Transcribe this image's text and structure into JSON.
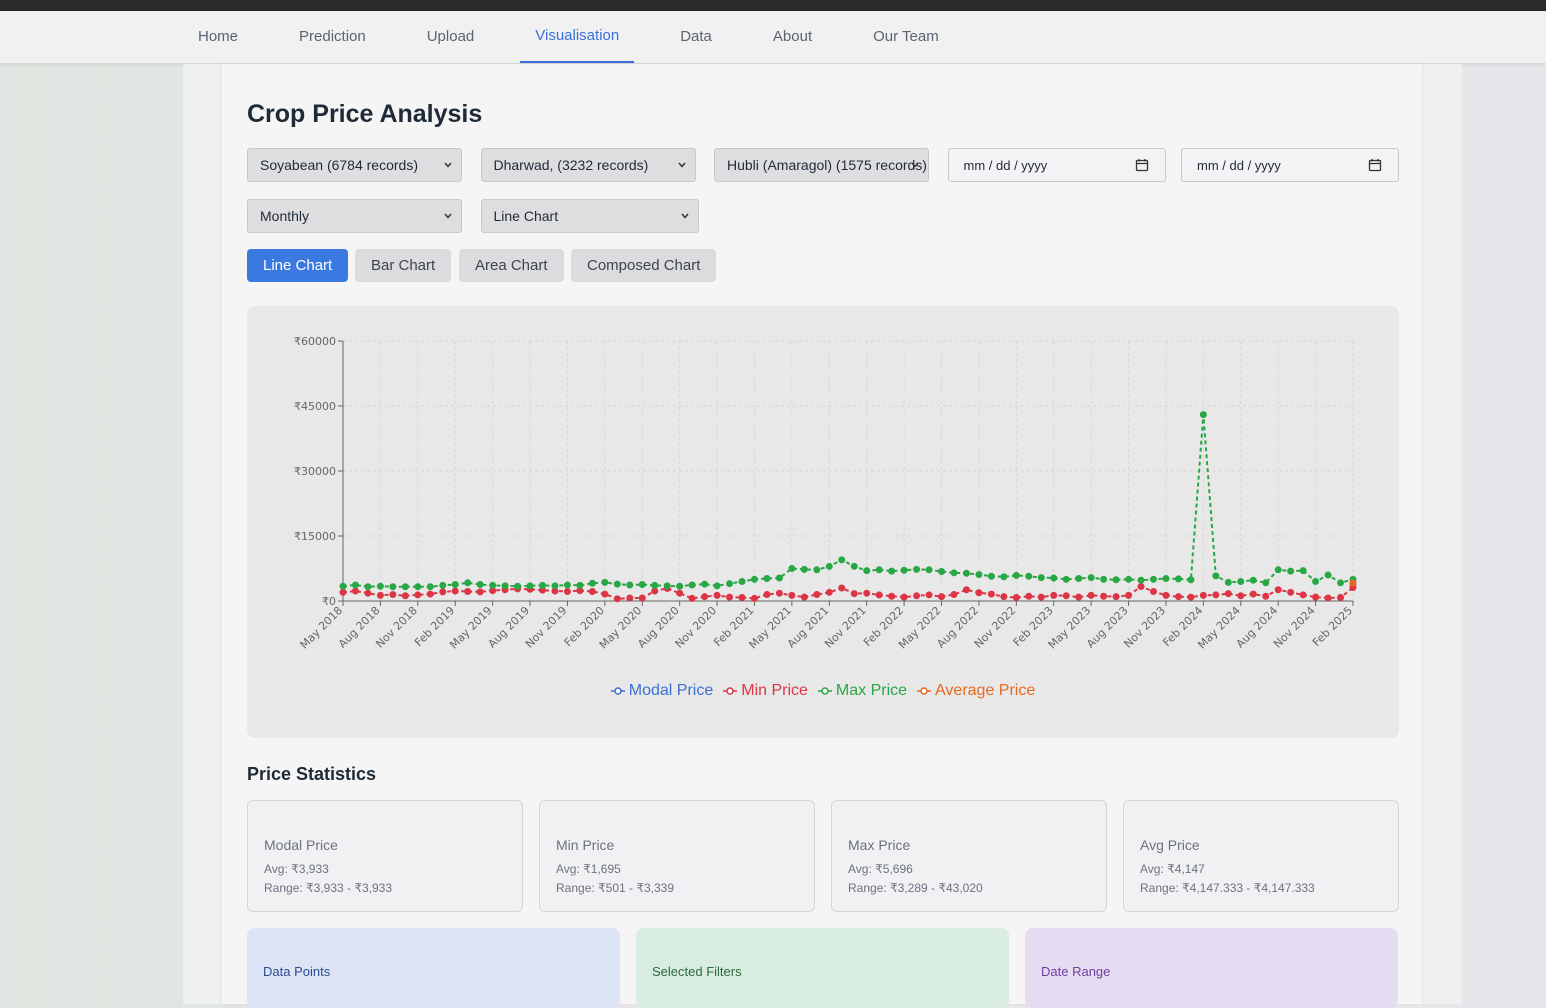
{
  "nav": {
    "items": [
      "Home",
      "Prediction",
      "Upload",
      "Visualisation",
      "Data",
      "About",
      "Our Team"
    ],
    "active": 3
  },
  "page": {
    "title": "Crop Price Analysis"
  },
  "filters": {
    "selects": [
      "Soyabean (6784 records)",
      "Dharwad, (3232 records)",
      "Hubli (Amaragol) (1575 records)"
    ],
    "date_inputs": [
      "mm / dd / yyyy",
      "mm / dd / yyyy"
    ],
    "aggregation": "Monthly",
    "chart_select": "Line Chart"
  },
  "chart_buttons": {
    "items": [
      "Line Chart",
      "Bar Chart",
      "Area Chart",
      "Composed Chart"
    ],
    "active": 0
  },
  "chart_data": {
    "type": "line",
    "categories": [
      "May 2018",
      null,
      null,
      "Aug 2018",
      null,
      null,
      "Nov 2018",
      null,
      null,
      "Feb 2019",
      null,
      null,
      "May 2019",
      null,
      null,
      "Aug 2019",
      null,
      null,
      "Nov 2019",
      null,
      null,
      "Feb 2020",
      null,
      null,
      "May 2020",
      null,
      null,
      "Aug 2020",
      null,
      null,
      "Nov 2020",
      null,
      null,
      "Feb 2021",
      null,
      null,
      "May 2021",
      null,
      null,
      "Aug 2021",
      null,
      null,
      "Nov 2021",
      null,
      null,
      "Feb 2022",
      null,
      null,
      "May 2022",
      null,
      null,
      "Aug 2022",
      null,
      null,
      "Nov 2022",
      null,
      null,
      "Feb 2023",
      null,
      null,
      "May 2023",
      null,
      null,
      "Aug 2023",
      null,
      null,
      "Nov 2023",
      null,
      null,
      "Feb 2024",
      null,
      null,
      "May 2024",
      null,
      null,
      "Aug 2024",
      null,
      null,
      "Nov 2024",
      null,
      null,
      "Feb 2025"
    ],
    "series": [
      {
        "name": "Modal Price",
        "color": "#3b6fd6",
        "values": [
          null,
          null,
          null,
          null,
          null,
          null,
          null,
          null,
          null,
          null,
          null,
          null,
          null,
          null,
          null,
          null,
          null,
          null,
          null,
          null,
          null,
          null,
          null,
          null,
          null,
          null,
          null,
          null,
          null,
          null,
          null,
          null,
          null,
          null,
          null,
          null,
          null,
          null,
          null,
          null,
          null,
          null,
          null,
          null,
          null,
          null,
          null,
          null,
          null,
          null,
          null,
          null,
          null,
          null,
          null,
          null,
          null,
          null,
          null,
          null,
          null,
          null,
          null,
          null,
          null,
          null,
          null,
          null,
          null,
          null,
          null,
          null,
          null,
          null,
          null,
          null,
          null,
          null,
          null,
          null,
          null,
          3933
        ]
      },
      {
        "name": "Min Price",
        "color": "#dc3545",
        "values": [
          2000,
          2300,
          1800,
          1300,
          1500,
          1200,
          1400,
          1600,
          2100,
          2300,
          2200,
          2100,
          2400,
          2600,
          2800,
          2700,
          2500,
          2300,
          2200,
          2400,
          2200,
          1600,
          501,
          700,
          700,
          2300,
          2900,
          1800,
          600,
          1000,
          1300,
          900,
          800,
          600,
          1500,
          1800,
          1300,
          900,
          1500,
          2000,
          3000,
          1700,
          1800,
          1400,
          1100,
          900,
          1200,
          1400,
          1000,
          1500,
          2600,
          1900,
          1600,
          1000,
          800,
          1100,
          900,
          1300,
          1200,
          900,
          1300,
          1100,
          1000,
          1300,
          3339,
          2200,
          1300,
          1000,
          900,
          1300,
          1400,
          1700,
          1200,
          1600,
          1100,
          2600,
          2000,
          1400,
          900,
          700,
          800,
          3100
        ]
      },
      {
        "name": "Max Price",
        "color": "#28a745",
        "values": [
          3400,
          3700,
          3300,
          3400,
          3300,
          3289,
          3300,
          3300,
          3600,
          3800,
          4200,
          3800,
          3600,
          3500,
          3400,
          3500,
          3600,
          3500,
          3700,
          3600,
          4100,
          4300,
          3900,
          3700,
          3800,
          3600,
          3500,
          3400,
          3700,
          3900,
          3500,
          4000,
          4500,
          5000,
          5200,
          5300,
          7500,
          7300,
          7200,
          8000,
          9500,
          8000,
          7000,
          7200,
          6900,
          7100,
          7300,
          7200,
          6800,
          6500,
          6400,
          6100,
          5700,
          5600,
          5900,
          5700,
          5400,
          5300,
          5000,
          5200,
          5400,
          5000,
          4900,
          5000,
          4800,
          5000,
          5200,
          5100,
          4900,
          43020,
          5800,
          4300,
          4500,
          4800,
          4200,
          7200,
          6900,
          7000,
          4500,
          6000,
          4200,
          5000
        ]
      },
      {
        "name": "Average Price",
        "color": "#e8691d",
        "values": [
          null,
          null,
          null,
          null,
          null,
          null,
          null,
          null,
          null,
          null,
          null,
          null,
          null,
          null,
          null,
          null,
          null,
          null,
          null,
          null,
          null,
          null,
          null,
          null,
          null,
          null,
          null,
          null,
          null,
          null,
          null,
          null,
          null,
          null,
          null,
          null,
          null,
          null,
          null,
          null,
          null,
          null,
          null,
          null,
          null,
          null,
          null,
          null,
          null,
          null,
          null,
          null,
          null,
          null,
          null,
          null,
          null,
          null,
          null,
          null,
          null,
          null,
          null,
          null,
          null,
          null,
          null,
          null,
          null,
          null,
          null,
          null,
          null,
          null,
          null,
          null,
          null,
          null,
          null,
          null,
          null,
          4147.333
        ]
      }
    ],
    "ylim": [
      0,
      60000
    ],
    "yticks": [
      {
        "value": 0,
        "label": "₹0"
      },
      {
        "value": 15000,
        "label": "₹15000"
      },
      {
        "value": 30000,
        "label": "₹30000"
      },
      {
        "value": 45000,
        "label": "₹45000"
      },
      {
        "value": 60000,
        "label": "₹60000"
      }
    ],
    "grid": true,
    "legend": "bottom"
  },
  "statistics": {
    "title": "Price Statistics",
    "cards": [
      {
        "label": "Modal Price",
        "avg": "Avg: ₹3,933",
        "range": "Range: ₹3,933 - ₹3,933"
      },
      {
        "label": "Min Price",
        "avg": "Avg: ₹1,695",
        "range": "Range: ₹501 - ₹3,339"
      },
      {
        "label": "Max Price",
        "avg": "Avg: ₹5,696",
        "range": "Range: ₹3,289 - ₹43,020"
      },
      {
        "label": "Avg Price",
        "avg": "Avg: ₹4,147",
        "range": "Range: ₹4,147.333 - ₹4,147.333"
      }
    ]
  },
  "summary_cards": [
    "Data Points",
    "Selected Filters",
    "Date Range"
  ]
}
